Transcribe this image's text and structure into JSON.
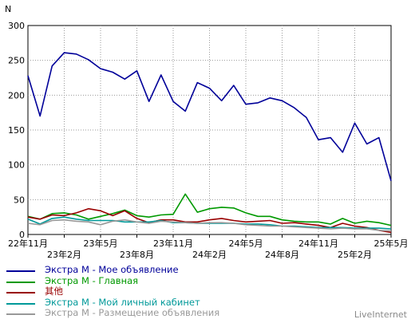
{
  "chart_data": {
    "type": "line",
    "ylabel": "N",
    "ylim": [
      0,
      300
    ],
    "yticks": [
      0,
      50,
      100,
      150,
      200,
      250,
      300
    ],
    "grid": true,
    "legend_position": "bottom-left",
    "x": [
      "22年11月",
      "22年12月",
      "23年1月",
      "23年2月",
      "23年3月",
      "23年4月",
      "23年5月",
      "23年6月",
      "23年7月",
      "23年8月",
      "23年9月",
      "23年10月",
      "23年11月",
      "23年12月",
      "24年1月",
      "24年2月",
      "24年3月",
      "24年4月",
      "24年5月",
      "24年6月",
      "24年7月",
      "24年8月",
      "24年9月",
      "24年10月",
      "24年11月",
      "24年12月",
      "25年1月",
      "25年2月",
      "25年3月",
      "25年4月",
      "25年5月"
    ],
    "xticks": [
      {
        "label": "22年11月",
        "index": 0,
        "row": 1
      },
      {
        "label": "23年2月",
        "index": 3,
        "row": 2
      },
      {
        "label": "23年5月",
        "index": 6,
        "row": 1
      },
      {
        "label": "23年8月",
        "index": 9,
        "row": 2
      },
      {
        "label": "23年11月",
        "index": 12,
        "row": 1
      },
      {
        "label": "24年2月",
        "index": 15,
        "row": 2
      },
      {
        "label": "24年5月",
        "index": 18,
        "row": 1
      },
      {
        "label": "24年8月",
        "index": 21,
        "row": 2
      },
      {
        "label": "24年11月",
        "index": 24,
        "row": 1
      },
      {
        "label": "25年2月",
        "index": 27,
        "row": 2
      },
      {
        "label": "25年5月",
        "index": 30,
        "row": 1
      }
    ],
    "series": [
      {
        "name": "Экстра М - Мое объявление",
        "color": "#000099",
        "values": [
          228,
          170,
          242,
          261,
          259,
          251,
          238,
          233,
          223,
          235,
          191,
          229,
          191,
          177,
          218,
          210,
          192,
          214,
          187,
          189,
          196,
          192,
          182,
          168,
          136,
          139,
          118,
          160,
          130,
          139,
          77
        ]
      },
      {
        "name": "Экстра М - Главная",
        "color": "#009900",
        "values": [
          26,
          22,
          30,
          31,
          28,
          22,
          26,
          30,
          35,
          27,
          25,
          28,
          29,
          58,
          32,
          37,
          39,
          38,
          31,
          26,
          26,
          21,
          19,
          18,
          18,
          15,
          23,
          16,
          19,
          17,
          13
        ]
      },
      {
        "name": "其他",
        "color": "#990000",
        "values": [
          25,
          22,
          28,
          27,
          31,
          37,
          34,
          27,
          34,
          23,
          17,
          21,
          21,
          18,
          18,
          21,
          23,
          20,
          18,
          19,
          20,
          16,
          17,
          15,
          13,
          10,
          16,
          12,
          10,
          6,
          3
        ]
      },
      {
        "name": "Экстра М - Мой личный кабинет",
        "color": "#009999",
        "values": [
          22,
          15,
          23,
          25,
          22,
          20,
          20,
          20,
          18,
          18,
          18,
          20,
          17,
          17,
          16,
          16,
          16,
          16,
          15,
          15,
          14,
          12,
          12,
          11,
          10,
          10,
          10,
          9,
          9,
          9,
          8
        ]
      },
      {
        "name": "Экстра М - Размещение объявления",
        "color": "#999999",
        "values": [
          16,
          14,
          20,
          21,
          19,
          18,
          14,
          19,
          21,
          18,
          16,
          19,
          18,
          17,
          16,
          17,
          17,
          16,
          14,
          13,
          12,
          12,
          11,
          10,
          9,
          8,
          9,
          8,
          8,
          6,
          5
        ]
      }
    ]
  },
  "brand": "LiveInternet"
}
